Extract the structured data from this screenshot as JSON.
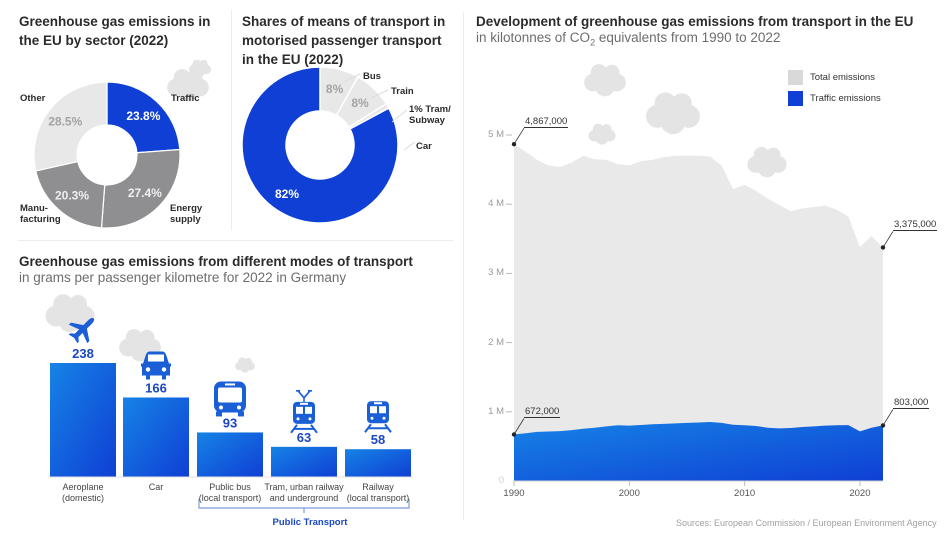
{
  "panel1": {
    "title_line1": "Greenhouse gas emissions in",
    "title_line2": "the EU by sector (2022)"
  },
  "panel2": {
    "title_line1": "Shares of means of transport in",
    "title_line2": "motorised passenger transport",
    "title_line3": "in the EU (2022)"
  },
  "panel3": {
    "title": "Greenhouse gas emissions from different modes of transport",
    "subtitle": "in grams per passenger kilometre for 2022 in Germany",
    "group_label": "Public Transport"
  },
  "panel4": {
    "title": "Development of greenhouse gas emissions from transport in the EU",
    "subtitle_pre": "in kilotonnes of CO",
    "subtitle_sub": "2",
    "subtitle_post": " equivalents from 1990 to 2022",
    "source": "Sources: European Commission / European Environment Agency"
  },
  "colors": {
    "blue": "#0f3fd4",
    "blue_light": "#1683e6",
    "grey_dark": "#8f8f92",
    "grey_light": "#e8e8e8",
    "total_area": "#e9e9e9",
    "cloud": "#e4e4e4"
  },
  "chart_data": [
    {
      "type": "pie",
      "title": "Greenhouse gas emissions in the EU by sector (2022)",
      "donut": true,
      "slices": [
        {
          "label": "Traffic",
          "value": 23.8,
          "display": "23.8%",
          "color": "#0f3fd4",
          "text_color": "#ffffff"
        },
        {
          "label_lines": [
            "Energy",
            "supply"
          ],
          "label": "Energy supply",
          "value": 27.4,
          "display": "27.4%",
          "color": "#8f8f92",
          "text_color": "#f0f0f0"
        },
        {
          "label_lines": [
            "Manu-",
            "facturing"
          ],
          "label": "Manufacturing",
          "value": 20.3,
          "display": "20.3%",
          "color": "#8f8f92",
          "text_color": "#f0f0f0"
        },
        {
          "label": "Other",
          "value": 28.5,
          "display": "28.5%",
          "color": "#e8e8e8",
          "text_color": "#a3a3a3"
        }
      ]
    },
    {
      "type": "pie",
      "title": "Shares of means of transport in motorised passenger transport in the EU (2022)",
      "donut": true,
      "slices": [
        {
          "label": "Car",
          "value": 82,
          "display": "82%",
          "color": "#0f3fd4",
          "text_color": "#ffffff"
        },
        {
          "label": "Tram/ Subway",
          "label_lines": [
            "1% Tram/",
            "Subway"
          ],
          "value": 1,
          "display": "",
          "color": "#e8e8e8",
          "text_color": "#a3a3a3"
        },
        {
          "label": "Train",
          "value": 8,
          "display": "8%",
          "color": "#e8e8e8",
          "text_color": "#a3a3a3"
        },
        {
          "label": "Bus",
          "value": 8,
          "display": "8%",
          "color": "#e8e8e8",
          "text_color": "#a3a3a3"
        }
      ]
    },
    {
      "type": "bar",
      "title": "Greenhouse gas emissions from different modes of transport",
      "subtitle": "in grams per passenger kilometre for 2022 in Germany",
      "unit": "g/pkm",
      "categories": [
        [
          "Aeroplane",
          "(domestic)"
        ],
        [
          "Car"
        ],
        [
          "Public bus",
          "(local transport)"
        ],
        [
          "Tram, urban railway",
          "and underground"
        ],
        [
          "Railway",
          "(local transport)"
        ]
      ],
      "icons": [
        "plane-icon",
        "car-icon",
        "bus-icon",
        "tram-icon",
        "train-icon"
      ],
      "values": [
        238,
        166,
        93,
        63,
        58
      ],
      "group": {
        "label": "Public Transport",
        "from_index": 2,
        "to_index": 4
      }
    },
    {
      "type": "area",
      "title": "Development of greenhouse gas emissions from transport in the EU",
      "subtitle": "in kilotonnes of CO2 equivalents from 1990 to 2022",
      "xlim": [
        1990,
        2022
      ],
      "ylim": [
        0,
        5000000
      ],
      "x_ticks": [
        1990,
        2000,
        2010,
        2020
      ],
      "y_ticks": [
        {
          "v": 0,
          "label": "0"
        },
        {
          "v": 1000000,
          "label": "1 M"
        },
        {
          "v": 2000000,
          "label": "2 M"
        },
        {
          "v": 3000000,
          "label": "3 M"
        },
        {
          "v": 4000000,
          "label": "4 M"
        },
        {
          "v": 5000000,
          "label": "5 M"
        }
      ],
      "legend": [
        {
          "label": "Total emissions",
          "color": "#d9d9d9"
        },
        {
          "label": "Traffic emissions",
          "color": "#0f3fd4"
        }
      ],
      "legend_position": "top-right",
      "x": [
        1990,
        1991,
        1992,
        1993,
        1994,
        1995,
        1996,
        1997,
        1998,
        1999,
        2000,
        2001,
        2002,
        2003,
        2004,
        2005,
        2006,
        2007,
        2008,
        2009,
        2010,
        2011,
        2012,
        2013,
        2014,
        2015,
        2016,
        2017,
        2018,
        2019,
        2020,
        2021,
        2022
      ],
      "series": [
        {
          "name": "Total emissions",
          "values": [
            4867000,
            4760000,
            4640000,
            4560000,
            4540000,
            4600000,
            4700000,
            4650000,
            4640000,
            4580000,
            4560000,
            4620000,
            4640000,
            4680000,
            4700000,
            4700000,
            4700000,
            4690000,
            4560000,
            4220000,
            4280000,
            4190000,
            4080000,
            3990000,
            3900000,
            3940000,
            3960000,
            3980000,
            3920000,
            3820000,
            3380000,
            3540000,
            3375000
          ]
        },
        {
          "name": "Traffic emissions",
          "values": [
            672000,
            690000,
            710000,
            715000,
            720000,
            735000,
            755000,
            770000,
            790000,
            805000,
            800000,
            810000,
            820000,
            825000,
            832000,
            840000,
            845000,
            852000,
            840000,
            812000,
            805000,
            795000,
            770000,
            760000,
            765000,
            780000,
            790000,
            800000,
            805000,
            808000,
            718000,
            770000,
            803000
          ]
        }
      ],
      "annotations": [
        {
          "x": 1990,
          "series": "Total emissions",
          "label": "4,867,000"
        },
        {
          "x": 2022,
          "series": "Total emissions",
          "label": "3,375,000"
        },
        {
          "x": 1990,
          "series": "Traffic emissions",
          "label": "672,000"
        },
        {
          "x": 2022,
          "series": "Traffic emissions",
          "label": "803,000"
        }
      ]
    }
  ]
}
